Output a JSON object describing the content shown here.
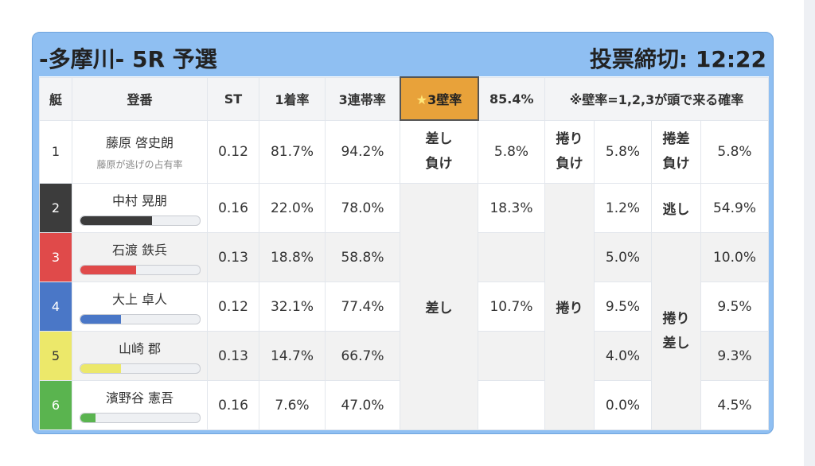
{
  "header": {
    "title": "-多摩川- 5R 予選",
    "deadline": "投票締切: 12:22"
  },
  "columns": {
    "boat": "艇",
    "name": "登番",
    "st": "ST",
    "win1": "1着率",
    "top3": "3連帯率",
    "wall_star": "★",
    "wall_label": "3壁率",
    "wall_value": "85.4%",
    "note": "※壁率=1,2,3が頭で来る確率"
  },
  "rows": [
    {
      "num": "1",
      "name": "藤原 啓史朗",
      "sub": "藤原が逃げの占有率",
      "st": "0.12",
      "win1": "81.7%",
      "top3": "94.2%"
    },
    {
      "num": "2",
      "name": "中村 晃朋",
      "st": "0.16",
      "win1": "22.0%",
      "top3": "78.0%",
      "bar_fraction": 0.6,
      "bar_color": "#3c3c3c"
    },
    {
      "num": "3",
      "name": "石渡 鉄兵",
      "st": "0.13",
      "win1": "18.8%",
      "top3": "58.8%",
      "bar_fraction": 0.47,
      "bar_color": "#e04a4a"
    },
    {
      "num": "4",
      "name": "大上 卓人",
      "st": "0.12",
      "win1": "32.1%",
      "top3": "77.4%",
      "bar_fraction": 0.34,
      "bar_color": "#4a77c7"
    },
    {
      "num": "5",
      "name": "山崎 郡",
      "st": "0.13",
      "win1": "14.7%",
      "top3": "66.7%",
      "bar_fraction": 0.34,
      "bar_color": "#ece86a"
    },
    {
      "num": "6",
      "name": "濱野谷 憲吾",
      "st": "0.16",
      "win1": "7.6%",
      "top3": "47.0%",
      "bar_fraction": 0.13,
      "bar_color": "#5ab44f"
    }
  ],
  "kimarite": {
    "r1": {
      "sashi_make_1": "差し",
      "sashi_make_2": "負け",
      "sashi_make_val": "5.8%",
      "makuri_make_1": "捲り",
      "makuri_make_2": "負け",
      "makuri_make_val": "5.8%",
      "makurisashi_make_1": "捲差",
      "makurisashi_make_2": "負け",
      "makurisashi_make_val": "5.8%"
    },
    "sashi_label": "差し",
    "sashi_r2": "18.3%",
    "sashi_r4": "10.7%",
    "makuri_label": "捲り",
    "makuri_vals": [
      "1.2%",
      "5.0%",
      "9.5%",
      "4.0%",
      "0.0%"
    ],
    "nige_label": "逃し",
    "nige_val": "54.9%",
    "makurisashi_label_1": "捲り",
    "makurisashi_label_2": "差し",
    "makurisashi_vals": [
      "10.0%",
      "9.5%",
      "9.3%",
      "4.5%"
    ]
  }
}
